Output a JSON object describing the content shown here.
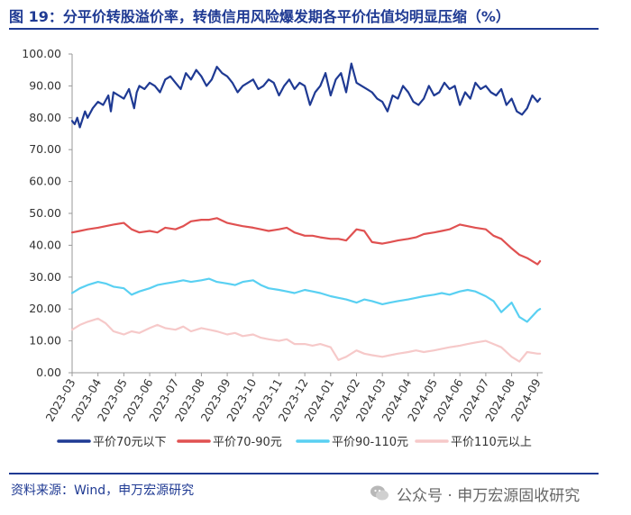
{
  "header": {
    "title": "图 19：分平价转股溢价率，转债信用风险爆发期各平价估值均明显压缩（%）"
  },
  "footer": {
    "source": "资料来源：Wind，申万宏源研究",
    "watermark": "公众号 · 申万宏源固收研究"
  },
  "chart_data": {
    "type": "line",
    "title": "分平价转股溢价率",
    "xlabel": "",
    "ylabel": "",
    "ylim": [
      0,
      100
    ],
    "y_ticks": [
      "0.00",
      "10.00",
      "20.00",
      "30.00",
      "40.00",
      "50.00",
      "60.00",
      "70.00",
      "80.00",
      "90.00",
      "100.00"
    ],
    "x_ticks": [
      "2023-03",
      "2023-04",
      "2023-05",
      "2023-06",
      "2023-07",
      "2023-08",
      "2023-09",
      "2023-10",
      "2023-11",
      "2023-12",
      "2024-01",
      "2024-02",
      "2024-03",
      "2024-04",
      "2024-05",
      "2024-06",
      "2024-07",
      "2024-08",
      "2024-09"
    ],
    "x_range": [
      0,
      18.2
    ],
    "grid": false,
    "legend_position": "bottom",
    "series": [
      {
        "name": "平价70元以下",
        "color": "#1f3a93",
        "x": [
          0,
          0.1,
          0.2,
          0.3,
          0.5,
          0.6,
          0.8,
          1.0,
          1.2,
          1.4,
          1.5,
          1.6,
          1.8,
          2.0,
          2.2,
          2.4,
          2.5,
          2.6,
          2.8,
          3.0,
          3.2,
          3.4,
          3.6,
          3.8,
          4.0,
          4.2,
          4.4,
          4.6,
          4.8,
          5.0,
          5.2,
          5.4,
          5.6,
          5.8,
          6.0,
          6.2,
          6.4,
          6.6,
          6.8,
          7.0,
          7.2,
          7.4,
          7.6,
          7.8,
          8.0,
          8.2,
          8.4,
          8.6,
          8.8,
          9.0,
          9.2,
          9.4,
          9.6,
          9.8,
          10.0,
          10.2,
          10.4,
          10.6,
          10.8,
          11.0,
          11.2,
          11.4,
          11.6,
          11.8,
          12.0,
          12.2,
          12.4,
          12.6,
          12.8,
          13.0,
          13.2,
          13.4,
          13.6,
          13.8,
          14.0,
          14.2,
          14.4,
          14.6,
          14.8,
          15.0,
          15.2,
          15.4,
          15.6,
          15.8,
          16.0,
          16.2,
          16.4,
          16.6,
          16.8,
          17.0,
          17.2,
          17.4,
          17.6,
          17.8,
          18.0,
          18.1
        ],
        "values": [
          79,
          78,
          80,
          77,
          82,
          80,
          83,
          85,
          84,
          87,
          82,
          88,
          87,
          86,
          89,
          83,
          88,
          90,
          89,
          91,
          90,
          88,
          92,
          93,
          91,
          89,
          94,
          92,
          95,
          93,
          90,
          92,
          96,
          94,
          93,
          91,
          88,
          90,
          91,
          92,
          89,
          90,
          92,
          91,
          87,
          90,
          92,
          89,
          91,
          90,
          84,
          88,
          90,
          94,
          87,
          92,
          94,
          88,
          97,
          91,
          90,
          89,
          88,
          86,
          85,
          82,
          87,
          86,
          90,
          88,
          85,
          84,
          86,
          90,
          87,
          88,
          91,
          89,
          90,
          84,
          88,
          86,
          91,
          89,
          90,
          88,
          87,
          89,
          84,
          86,
          82,
          81,
          83,
          87,
          85,
          86
        ]
      },
      {
        "name": "平价70-90元",
        "color": "#e05151",
        "x": [
          0,
          0.3,
          0.6,
          1.0,
          1.3,
          1.6,
          2.0,
          2.3,
          2.6,
          3.0,
          3.3,
          3.6,
          4.0,
          4.3,
          4.6,
          5.0,
          5.3,
          5.6,
          6.0,
          6.3,
          6.6,
          7.0,
          7.3,
          7.6,
          8.0,
          8.3,
          8.6,
          9.0,
          9.3,
          9.6,
          10.0,
          10.3,
          10.6,
          11.0,
          11.3,
          11.6,
          12.0,
          12.3,
          12.6,
          13.0,
          13.3,
          13.6,
          14.0,
          14.3,
          14.6,
          15.0,
          15.3,
          15.6,
          16.0,
          16.3,
          16.6,
          17.0,
          17.3,
          17.6,
          18.0,
          18.1
        ],
        "values": [
          44,
          44.5,
          45,
          45.5,
          46,
          46.5,
          47,
          45,
          44,
          44.5,
          44,
          45.5,
          45,
          46,
          47.5,
          48,
          48,
          48.5,
          47,
          46.5,
          46,
          45.5,
          45,
          44.5,
          45,
          45.5,
          44,
          43,
          43,
          42.5,
          42,
          42,
          41.5,
          45,
          44.5,
          41,
          40.5,
          41,
          41.5,
          42,
          42.5,
          43.5,
          44,
          44.5,
          45,
          46.5,
          46,
          45.5,
          45,
          43,
          42,
          39,
          37,
          36,
          34,
          35
        ]
      },
      {
        "name": "平价90-110元",
        "color": "#59d0f2",
        "x": [
          0,
          0.3,
          0.6,
          1.0,
          1.3,
          1.6,
          2.0,
          2.3,
          2.6,
          3.0,
          3.3,
          3.6,
          4.0,
          4.3,
          4.6,
          5.0,
          5.3,
          5.6,
          6.0,
          6.3,
          6.6,
          7.0,
          7.3,
          7.6,
          8.0,
          8.3,
          8.6,
          9.0,
          9.3,
          9.6,
          10.0,
          10.3,
          10.6,
          11.0,
          11.3,
          11.6,
          12.0,
          12.3,
          12.6,
          13.0,
          13.3,
          13.6,
          14.0,
          14.3,
          14.6,
          15.0,
          15.3,
          15.6,
          16.0,
          16.3,
          16.6,
          17.0,
          17.3,
          17.6,
          18.0,
          18.1
        ],
        "values": [
          25,
          26.5,
          27.5,
          28.5,
          28,
          27,
          26.5,
          24.5,
          25.5,
          26.5,
          27.5,
          28,
          28.5,
          29,
          28.5,
          29,
          29.5,
          28.5,
          28,
          27.5,
          28.5,
          29,
          27.5,
          26.5,
          26,
          25.5,
          25,
          26,
          25.5,
          25,
          24,
          23.5,
          23,
          22,
          23,
          22.5,
          21.5,
          22,
          22.5,
          23,
          23.5,
          24,
          24.5,
          25,
          24.5,
          25.5,
          26,
          25.5,
          24,
          22.5,
          19,
          22,
          17.5,
          16,
          19.5,
          20
        ]
      },
      {
        "name": "平价110元以上",
        "color": "#f6c9c9",
        "x": [
          0,
          0.3,
          0.6,
          1.0,
          1.3,
          1.6,
          2.0,
          2.3,
          2.6,
          3.0,
          3.3,
          3.6,
          4.0,
          4.3,
          4.6,
          5.0,
          5.3,
          5.6,
          6.0,
          6.3,
          6.6,
          7.0,
          7.3,
          7.6,
          8.0,
          8.3,
          8.6,
          9.0,
          9.3,
          9.6,
          10.0,
          10.3,
          10.6,
          11.0,
          11.3,
          11.6,
          12.0,
          12.3,
          12.6,
          13.0,
          13.3,
          13.6,
          14.0,
          14.3,
          14.6,
          15.0,
          15.3,
          15.6,
          16.0,
          16.3,
          16.6,
          17.0,
          17.3,
          17.6,
          18.0,
          18.1
        ],
        "values": [
          13.5,
          15,
          16,
          17,
          15.5,
          13,
          12,
          13,
          12.5,
          14,
          15,
          14,
          13.5,
          14.5,
          13,
          14,
          13.5,
          13,
          12,
          12.5,
          11.5,
          12,
          11,
          10.5,
          10,
          10.5,
          9,
          9,
          8.5,
          9,
          8,
          4,
          5,
          7,
          6,
          5.5,
          5,
          5.5,
          6,
          6.5,
          7,
          6.5,
          7,
          7.5,
          8,
          8.5,
          9,
          9.5,
          10,
          9,
          8,
          5,
          3.5,
          6.5,
          6,
          6
        ]
      }
    ]
  }
}
